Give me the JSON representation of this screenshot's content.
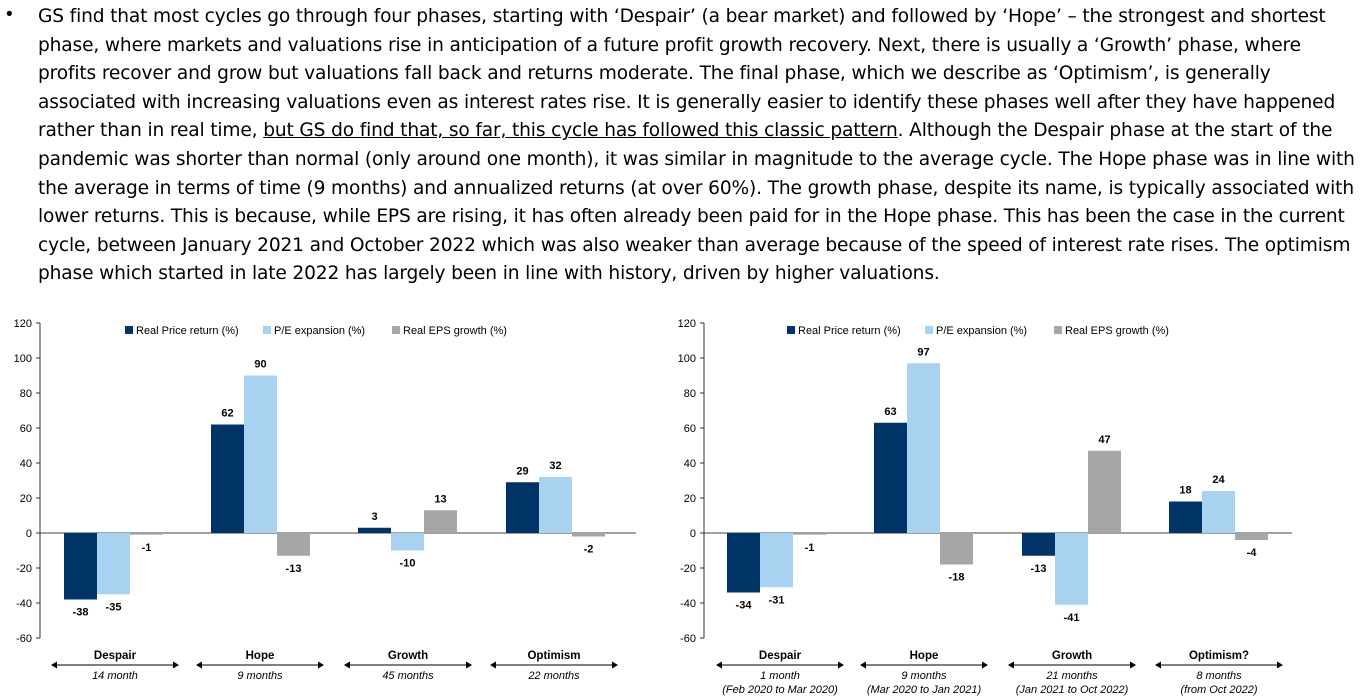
{
  "bullet": {
    "marker": "•",
    "text_before": "GS find that most cycles go through four phases, starting with ‘Despair’ (a bear market) and followed by ‘Hope’ – the strongest and shortest phase, where markets and valuations rise in anticipation of a future profit growth recovery. Next, there is usually a ‘Growth’ phase, where profits recover and grow but valuations fall back and returns moderate. The final phase, which we describe as ‘Optimism’, is generally associated with increasing valuations even as interest rates rise. It is generally easier to identify these phases well after they have happened rather than in real time, ",
    "text_underlined": "but GS do find that, so far, this cycle has followed this classic pattern",
    "text_after": ". Although the Despair phase at the start of the pandemic was shorter than normal (only around one month), it was similar in magnitude to the average cycle. The Hope phase was in line with the average in terms of time (9 months) and annualized returns (at over 60%). The growth phase, despite its name, is typically associated with lower returns. This is because, while EPS are rising, it has often already been paid for in the Hope phase. This has been the case in the current cycle, between January 2021 and October 2022 which was also weaker than average because of the speed of interest rate rises. The optimism phase which started in late 2022 has largely been in line with history, driven by higher valuations."
  },
  "colors": {
    "real_price_return": "#003366",
    "pe_expansion": "#a9d1f0",
    "real_eps_growth": "#a6a6a6"
  },
  "chart_data": [
    {
      "type": "bar",
      "categories": [
        "Despair",
        "Hope",
        "Growth",
        "Optimism"
      ],
      "durations": [
        [
          "14 month"
        ],
        [
          "9 months"
        ],
        [
          "45 months"
        ],
        [
          "22 months"
        ]
      ],
      "series": [
        {
          "name": "Real Price return (%)",
          "values": [
            -38,
            62,
            3,
            29
          ]
        },
        {
          "name": "P/E expansion (%)",
          "values": [
            -35,
            90,
            -10,
            32
          ]
        },
        {
          "name": "Real EPS growth (%)",
          "values": [
            -1,
            -13,
            13,
            -2
          ]
        }
      ],
      "yticks": [
        -60,
        -40,
        -20,
        0,
        20,
        40,
        60,
        80,
        100,
        120
      ],
      "ylim": [
        -60,
        120
      ],
      "legend": "top",
      "grid": false
    },
    {
      "type": "bar",
      "categories": [
        "Despair",
        "Hope",
        "Growth",
        "Optimism?"
      ],
      "durations": [
        [
          "1 month",
          "(Feb 2020 to Mar 2020)"
        ],
        [
          "9 months",
          "(Mar 2020 to Jan 2021)"
        ],
        [
          "21 months",
          "(Jan 2021 to Oct 2022)"
        ],
        [
          "8 months",
          "(from Oct 2022)"
        ]
      ],
      "series": [
        {
          "name": "Real Price return (%)",
          "values": [
            -34,
            63,
            -13,
            18
          ]
        },
        {
          "name": "P/E expansion (%)",
          "values": [
            -31,
            97,
            -41,
            24
          ]
        },
        {
          "name": "Real EPS growth (%)",
          "values": [
            -1,
            -18,
            47,
            -4
          ]
        }
      ],
      "yticks": [
        -60,
        -40,
        -20,
        0,
        20,
        40,
        60,
        80,
        100,
        120
      ],
      "ylim": [
        -60,
        120
      ],
      "legend": "top",
      "grid": false
    }
  ]
}
